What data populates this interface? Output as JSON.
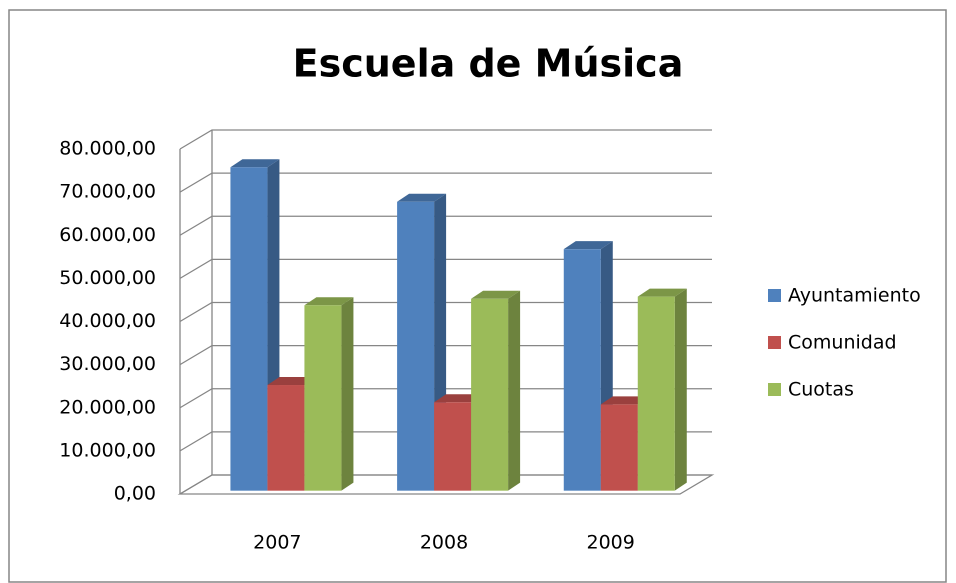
{
  "chart_data": {
    "type": "bar3d",
    "title": "Escuela de Música",
    "categories": [
      "2007",
      "2008",
      "2009"
    ],
    "series": [
      {
        "name": "Ayuntamiento",
        "color": "#4f81bd",
        "values": [
          75000,
          67000,
          56000
        ]
      },
      {
        "name": "Comunidad",
        "color": "#c0504d",
        "values": [
          24500,
          20500,
          20000
        ]
      },
      {
        "name": "Cuotas",
        "color": "#9bbb59",
        "values": [
          43000,
          44500,
          45000
        ]
      }
    ],
    "ylim": [
      0,
      80000
    ],
    "yticks": [
      {
        "value": 0,
        "label": "0,00"
      },
      {
        "value": 10000,
        "label": "10.000,00"
      },
      {
        "value": 20000,
        "label": "20.000,00"
      },
      {
        "value": 30000,
        "label": "30.000,00"
      },
      {
        "value": 40000,
        "label": "40.000,00"
      },
      {
        "value": 50000,
        "label": "50.000,00"
      },
      {
        "value": 60000,
        "label": "60.000,00"
      },
      {
        "value": 70000,
        "label": "70.000,00"
      },
      {
        "value": 80000,
        "label": "80.000,00"
      }
    ],
    "grid": true,
    "legend": "right"
  }
}
